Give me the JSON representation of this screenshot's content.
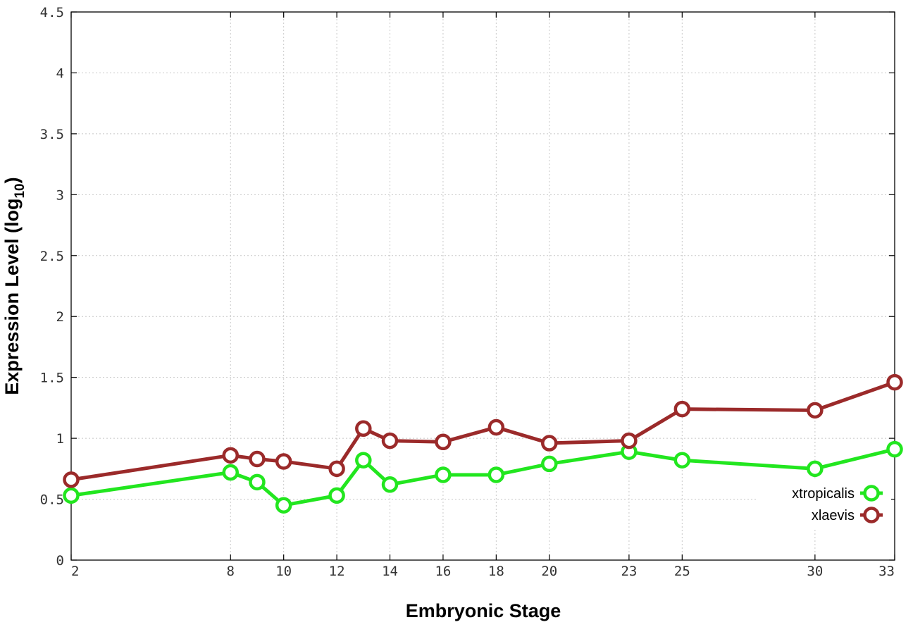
{
  "chart_data": {
    "type": "line",
    "xlabel": "Embryonic Stage",
    "ylabel_main": "Expression Level (log",
    "ylabel_sub": "10",
    "ylabel_close": ")",
    "xlim": [
      2,
      33
    ],
    "ylim": [
      0,
      4.5
    ],
    "x_ticks": [
      2,
      8,
      10,
      12,
      14,
      16,
      18,
      20,
      23,
      25,
      30,
      33
    ],
    "y_ticks": [
      0,
      0.5,
      1,
      1.5,
      2,
      2.5,
      3,
      3.5,
      4,
      4.5
    ],
    "y_tick_labels": [
      "0",
      "0.5",
      "1",
      "1.5",
      "2",
      "2.5",
      "3",
      "3.5",
      "4",
      "4.5"
    ],
    "grid": true,
    "legend_position": "right",
    "series": [
      {
        "name": "xtropicalis",
        "color": "#22e61f",
        "x": [
          2,
          8,
          9,
          10,
          12,
          13,
          14,
          16,
          18,
          20,
          23,
          25,
          30,
          33
        ],
        "y": [
          0.53,
          0.72,
          0.64,
          0.45,
          0.53,
          0.82,
          0.62,
          0.7,
          0.7,
          0.79,
          0.89,
          0.82,
          0.75,
          0.91
        ]
      },
      {
        "name": "xlaevis",
        "color": "#9b2a2a",
        "x": [
          2,
          8,
          9,
          10,
          12,
          13,
          14,
          16,
          18,
          20,
          23,
          25,
          30,
          33
        ],
        "y": [
          0.66,
          0.86,
          0.83,
          0.81,
          0.75,
          1.08,
          0.98,
          0.97,
          1.09,
          0.96,
          0.98,
          1.24,
          1.23,
          1.46
        ]
      }
    ]
  }
}
